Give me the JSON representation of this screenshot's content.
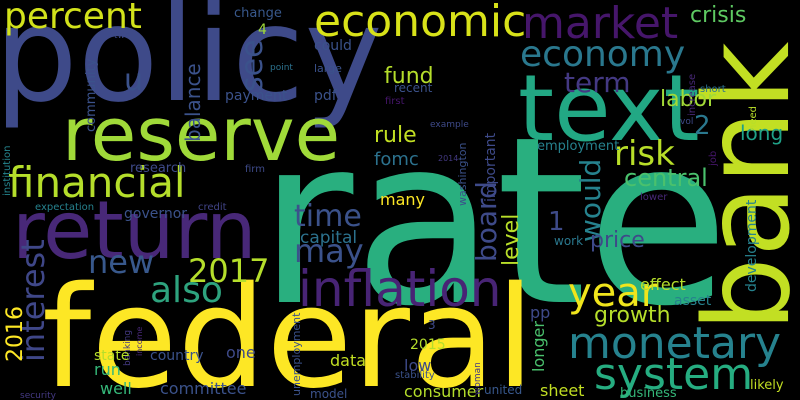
{
  "words": [
    "rate",
    "policy",
    "federal",
    "bank",
    "reserve",
    "text",
    "return",
    "financial",
    "economic",
    "market",
    "economy",
    "percent",
    "inflation",
    "monetary",
    "system",
    "year",
    "also",
    "new",
    "2017",
    "may",
    "time",
    "capital",
    "interest",
    "2016",
    "risk",
    "central",
    "labor",
    "long",
    "2",
    "term",
    "crisis",
    "fund",
    "rule",
    "fomc",
    "see",
    "balance",
    "u",
    "board",
    "level",
    "would",
    "1",
    "price",
    "growth",
    "effect",
    "asset",
    "development",
    "work",
    "lower",
    "job",
    "need",
    "employment",
    "important",
    "payment",
    "pdf",
    "recent",
    "first",
    "could",
    "change",
    "4",
    "large",
    "point",
    "community",
    "two",
    "institution",
    "research",
    "firm",
    "expectation",
    "credit",
    "governor",
    "washington",
    "2014",
    "example",
    "many",
    "vol",
    "increase",
    "short",
    "unemployment",
    "banking",
    "income",
    "security",
    "country",
    "one",
    "state",
    "run",
    "well",
    "committee",
    "model",
    "data",
    "2015",
    "3",
    "low",
    "stability",
    "consumer",
    "united",
    "sheet",
    "business",
    "likely",
    "longer",
    "pp",
    "woman"
  ]
}
